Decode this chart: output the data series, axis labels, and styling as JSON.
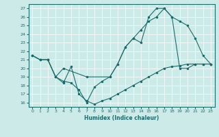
{
  "xlabel": "Humidex (Indice chaleur)",
  "bg_color": "#cceae7",
  "line_color": "#1c6b6b",
  "grid_color": "#ffffff",
  "xlim": [
    -0.5,
    23.5
  ],
  "ylim": [
    15.5,
    27.5
  ],
  "yticks": [
    16,
    17,
    18,
    19,
    20,
    21,
    22,
    23,
    24,
    25,
    26,
    27
  ],
  "xticks": [
    0,
    1,
    2,
    3,
    4,
    5,
    6,
    7,
    8,
    9,
    10,
    11,
    12,
    13,
    14,
    15,
    16,
    17,
    18,
    19,
    20,
    21,
    22,
    23
  ],
  "line1_x": [
    0,
    1,
    2,
    3,
    4,
    5,
    6,
    7,
    8,
    9,
    10,
    11,
    12,
    13,
    14,
    15,
    16,
    17,
    18,
    19,
    20,
    21,
    22,
    23
  ],
  "line1_y": [
    21.5,
    21.0,
    21.0,
    19.0,
    18.3,
    20.2,
    17.0,
    16.2,
    15.8,
    16.2,
    16.5,
    17.0,
    17.5,
    18.0,
    18.5,
    19.0,
    19.5,
    20.0,
    20.2,
    20.3,
    20.5,
    20.5,
    20.5,
    20.5
  ],
  "line2_x": [
    0,
    1,
    2,
    3,
    4,
    5,
    6,
    7,
    8,
    9,
    10,
    11,
    12,
    13,
    14,
    15,
    16,
    17,
    18,
    19,
    20,
    21,
    22,
    23
  ],
  "line2_y": [
    21.5,
    21.0,
    21.0,
    19.0,
    18.5,
    18.3,
    17.5,
    16.0,
    17.8,
    18.5,
    19.0,
    20.5,
    22.5,
    23.5,
    23.0,
    26.0,
    27.0,
    27.0,
    26.0,
    25.5,
    25.0,
    23.5,
    21.5,
    20.5
  ],
  "line3_x": [
    0,
    1,
    2,
    3,
    4,
    7,
    10,
    11,
    12,
    13,
    14,
    15,
    16,
    17,
    18,
    19,
    20,
    21,
    22,
    23
  ],
  "line3_y": [
    21.5,
    21.0,
    21.0,
    19.0,
    20.0,
    19.0,
    19.0,
    20.5,
    22.5,
    23.5,
    24.5,
    25.5,
    26.0,
    27.0,
    26.0,
    20.0,
    20.0,
    20.5,
    20.5,
    20.5
  ]
}
